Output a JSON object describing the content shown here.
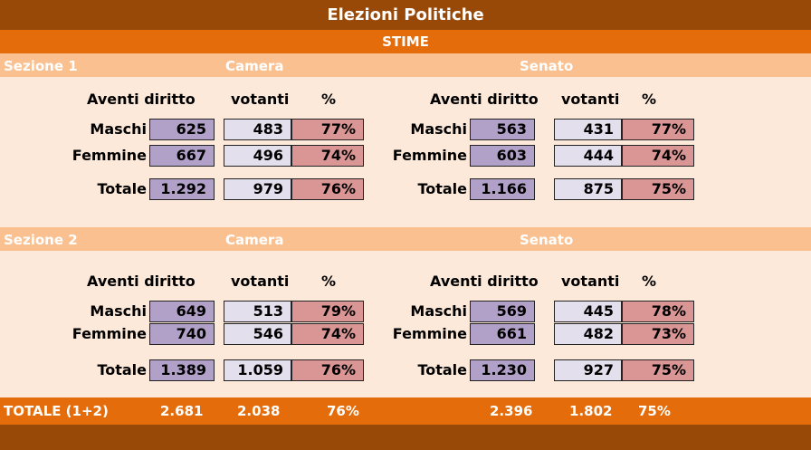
{
  "title": "Elezioni Politiche",
  "subtitle": "STIME",
  "headers": {
    "camera": "Camera",
    "senato": "Senato",
    "aventi": "Aventi diritto",
    "votanti": "votanti",
    "pct": "%"
  },
  "row_labels": {
    "maschi": "Maschi",
    "femmine": "Femmine",
    "totale": "Totale"
  },
  "sections": [
    {
      "name": "Sezione 1",
      "camera": {
        "maschi": {
          "aventi": "625",
          "votanti": "483",
          "pct": "77%"
        },
        "femmine": {
          "aventi": "667",
          "votanti": "496",
          "pct": "74%"
        },
        "totale": {
          "aventi": "1.292",
          "votanti": "979",
          "pct": "76%"
        }
      },
      "senato": {
        "maschi": {
          "aventi": "563",
          "votanti": "431",
          "pct": "77%"
        },
        "femmine": {
          "aventi": "603",
          "votanti": "444",
          "pct": "74%"
        },
        "totale": {
          "aventi": "1.166",
          "votanti": "875",
          "pct": "75%"
        }
      }
    },
    {
      "name": "Sezione 2",
      "camera": {
        "maschi": {
          "aventi": "649",
          "votanti": "513",
          "pct": "79%"
        },
        "femmine": {
          "aventi": "740",
          "votanti": "546",
          "pct": "74%"
        },
        "totale": {
          "aventi": "1.389",
          "votanti": "1.059",
          "pct": "76%"
        }
      },
      "senato": {
        "maschi": {
          "aventi": "569",
          "votanti": "445",
          "pct": "78%"
        },
        "femmine": {
          "aventi": "661",
          "votanti": "482",
          "pct": "73%"
        },
        "totale": {
          "aventi": "1.230",
          "votanti": "927",
          "pct": "75%"
        }
      }
    }
  ],
  "grand_total": {
    "label": "TOTALE (1+2)",
    "camera": {
      "aventi": "2.681",
      "votanti": "2.038",
      "pct": "76%"
    },
    "senato": {
      "aventi": "2.396",
      "votanti": "1.802",
      "pct": "75%"
    }
  },
  "colors": {
    "title": "#984807",
    "orange": "#e46c0a",
    "section": "#fac090",
    "bg": "#fde9d9",
    "aventi": "#b1a0c7",
    "votanti": "#e4dfec",
    "pct": "#da9694"
  }
}
